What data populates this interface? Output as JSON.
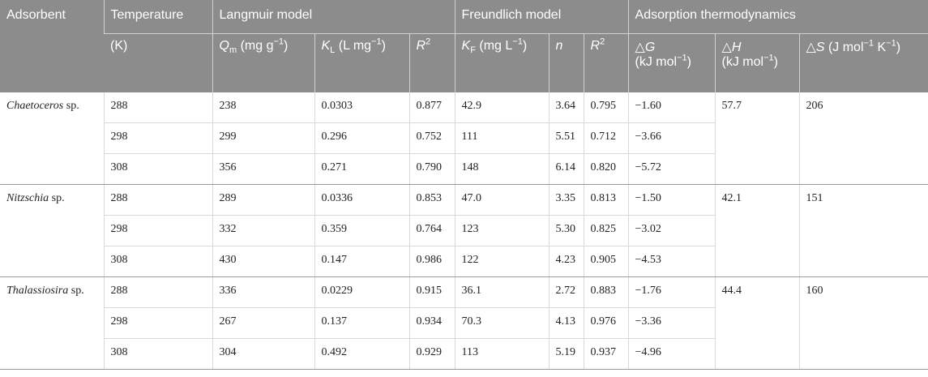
{
  "header": {
    "adsorbent": "Adsorbent",
    "temperature": "Temperature",
    "temperature_unit": "(K)",
    "langmuir": "Langmuir model",
    "freundlich": "Freundlich model",
    "thermo": "Adsorption thermodynamics",
    "qm": {
      "sym": "Q",
      "sub": "m",
      "unit_a": " (mg g",
      "sup": "−1",
      "unit_b": ")"
    },
    "kl": {
      "sym": "K",
      "sub": "L",
      "unit_a": " (L mg",
      "sup": "−1",
      "unit_b": ")"
    },
    "r2": {
      "sym": "R",
      "sup": "2"
    },
    "kf": {
      "sym": "K",
      "sub": "F",
      "unit_a": " (mg L",
      "sup": "−1",
      "unit_b": ")"
    },
    "n": "n",
    "dg": {
      "tri": "△",
      "sym": "G",
      "unit_a": "(kJ mol",
      "sup": "−1",
      "unit_b": ")"
    },
    "dh": {
      "tri": "△",
      "sym": "H",
      "unit_a": "(kJ mol",
      "sup": "−1",
      "unit_b": ")"
    },
    "ds": {
      "tri": "△",
      "sym": "S",
      "unit_a": " (J mol",
      "sup1": "−1",
      "mid": " K",
      "sup2": "−1",
      "unit_b": ")"
    }
  },
  "groups": [
    {
      "name": "Chaetoceros",
      "suffix": " sp.",
      "dh": "57.7",
      "ds": "206",
      "rows": [
        {
          "t": "288",
          "qm": "238",
          "kl": "0.0303",
          "r2l": "0.877",
          "kf": "42.9",
          "n": "3.64",
          "r2f": "0.795",
          "dg": "−1.60"
        },
        {
          "t": "298",
          "qm": "299",
          "kl": "0.296",
          "r2l": "0.752",
          "kf": "111",
          "n": "5.51",
          "r2f": "0.712",
          "dg": "−3.66"
        },
        {
          "t": "308",
          "qm": "356",
          "kl": "0.271",
          "r2l": "0.790",
          "kf": "148",
          "n": "6.14",
          "r2f": "0.820",
          "dg": "−5.72"
        }
      ]
    },
    {
      "name": "Nitzschia",
      "suffix": " sp.",
      "dh": "42.1",
      "ds": "151",
      "rows": [
        {
          "t": "288",
          "qm": "289",
          "kl": "0.0336",
          "r2l": "0.853",
          "kf": "47.0",
          "n": "3.35",
          "r2f": "0.813",
          "dg": "−1.50"
        },
        {
          "t": "298",
          "qm": "332",
          "kl": "0.359",
          "r2l": "0.764",
          "kf": "123",
          "n": "5.30",
          "r2f": "0.825",
          "dg": "−3.02"
        },
        {
          "t": "308",
          "qm": "430",
          "kl": "0.147",
          "r2l": "0.986",
          "kf": "122",
          "n": "4.23",
          "r2f": "0.905",
          "dg": "−4.53"
        }
      ]
    },
    {
      "name": "Thalassiosira",
      "suffix": " sp.",
      "dh": "44.4",
      "ds": "160",
      "rows": [
        {
          "t": "288",
          "qm": "336",
          "kl": "0.0229",
          "r2l": "0.915",
          "kf": "36.1",
          "n": "2.72",
          "r2f": "0.883",
          "dg": "−1.76"
        },
        {
          "t": "298",
          "qm": "267",
          "kl": "0.137",
          "r2l": "0.934",
          "kf": "70.3",
          "n": "4.13",
          "r2f": "0.976",
          "dg": "−3.36"
        },
        {
          "t": "308",
          "qm": "304",
          "kl": "0.492",
          "r2l": "0.929",
          "kf": "113",
          "n": "5.19",
          "r2f": "0.937",
          "dg": "−4.96"
        }
      ]
    }
  ]
}
